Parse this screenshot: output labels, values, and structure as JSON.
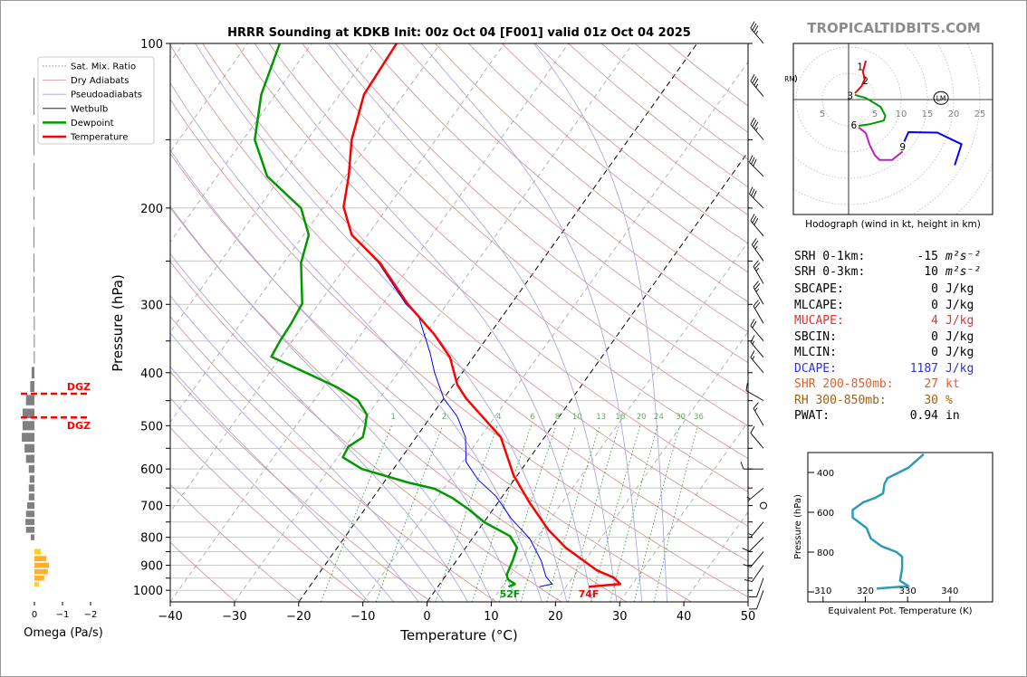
{
  "title": "HRRR Sounding at KDKB Init: 00z Oct 04 [F001] valid 01z Oct 04 2025",
  "watermark": "TROPICALTIDBITS.COM",
  "colors": {
    "temperature": "#ff0000",
    "dewpoint": "#009900",
    "wetbulb": "#0000ff",
    "dry_adiabat": "#d09090",
    "pseudoadiabat": "#a0a0e0",
    "mixing_ratio": "#2e8b2e",
    "isotherm": "#a0a0a0",
    "isotherm_key": "#000000",
    "omega_down": "#808080",
    "omega_up": "#ffb030",
    "omega_up_weak": "#ffd020",
    "dgz": "#ff0000",
    "hodo_0_3": "#ff0000",
    "hodo_3_6": "#009900",
    "hodo_6_9": "#bb22bb",
    "hodo_9_up": "#0000ff",
    "theta_e": "#2e9bb5",
    "mucape": "#e03030",
    "dcape": "#3030e0",
    "shr": "#e06030",
    "rh": "#a06010"
  },
  "legend": {
    "placement": "top-left",
    "items": [
      {
        "label": "Sat. Mix. Ratio",
        "style": "mixing_ratio"
      },
      {
        "label": "Dry Adiabats",
        "style": "dry_adiabat"
      },
      {
        "label": "Pseudoadiabats",
        "style": "pseudoadiabat"
      },
      {
        "label": "Wetbulb",
        "style": "wetbulb_legend"
      },
      {
        "label": "Dewpoint",
        "style": "dewpoint"
      },
      {
        "label": "Temperature",
        "style": "temperature"
      }
    ]
  },
  "indices": [
    {
      "label": "SRH 0-1km:",
      "value": "-15",
      "unit": "m²s⁻²",
      "color": "#000000",
      "italic": true
    },
    {
      "label": "SRH 0-3km:",
      "value": "10",
      "unit": "m²s⁻²",
      "color": "#000000",
      "italic": true
    },
    {
      "label": "SBCAPE:",
      "value": "0",
      "unit": "J/kg",
      "color": "#000000"
    },
    {
      "label": "MLCAPE:",
      "value": "0",
      "unit": "J/kg",
      "color": "#000000"
    },
    {
      "label": "MUCAPE:",
      "value": "4",
      "unit": "J/kg",
      "color": "#e03030"
    },
    {
      "label": "SBCIN:",
      "value": "0",
      "unit": "J/kg",
      "color": "#000000"
    },
    {
      "label": "MLCIN:",
      "value": "0",
      "unit": "J/kg",
      "color": "#000000"
    },
    {
      "label": "DCAPE:",
      "value": "1187",
      "unit": "J/kg",
      "color": "#3030e0"
    },
    {
      "label": "SHR 200-850mb:",
      "value": "27",
      "unit": "kt",
      "color": "#e06030"
    },
    {
      "label": "RH 300-850mb:",
      "value": "30",
      "unit": "%",
      "color": "#a06010"
    },
    {
      "label": "PWAT:",
      "value": "0.94",
      "unit": "in",
      "color": "#000000"
    }
  ],
  "chart_data": [
    {
      "type": "line",
      "name_of_panel": "skewt",
      "xlabel": "Temperature (°C)",
      "ylabel": "Pressure (hPa)",
      "xlim": [
        -40,
        50
      ],
      "ylim": [
        1050,
        100
      ],
      "yscale": "log",
      "skewed": true,
      "xticks": [
        -40,
        -30,
        -20,
        -10,
        0,
        10,
        20,
        30,
        40,
        50
      ],
      "xtick_labels": [
        "−40",
        "−30",
        "−20",
        "−10",
        "0",
        "10",
        "20",
        "30",
        "40",
        "50"
      ],
      "yticks": [
        100,
        200,
        300,
        400,
        500,
        600,
        700,
        800,
        900,
        1000
      ],
      "ytick_labels": [
        "100",
        "200",
        "300",
        "400",
        "500",
        "600",
        "700",
        "800",
        "900",
        "1000"
      ],
      "grid_pressures": [
        100,
        150,
        200,
        250,
        300,
        350,
        400,
        450,
        500,
        550,
        600,
        650,
        700,
        750,
        800,
        850,
        900,
        950,
        1000
      ],
      "key_isotherms": [
        -20,
        0
      ],
      "mixing_ratio_lines": [
        1,
        2,
        4,
        6,
        8,
        10,
        13,
        16,
        20,
        24,
        30,
        36
      ],
      "mixing_ratio_labels": [
        "1",
        "2",
        "4",
        "6",
        "8",
        "10",
        "13",
        "16",
        "20",
        "24",
        "30",
        "36"
      ],
      "temperature": [
        [
          100,
          -66.8
        ],
        [
          124,
          -66.2
        ],
        [
          150,
          -63.1
        ],
        [
          175,
          -59.5
        ],
        [
          199,
          -56.9
        ],
        [
          224,
          -52.5
        ],
        [
          252,
          -45.0
        ],
        [
          299,
          -36.2
        ],
        [
          341,
          -28.5
        ],
        [
          375,
          -23.6
        ],
        [
          421,
          -19.4
        ],
        [
          446,
          -16.5
        ],
        [
          525,
          -6.8
        ],
        [
          616,
          -0.6
        ],
        [
          691,
          4.9
        ],
        [
          774,
          10.8
        ],
        [
          836,
          15.6
        ],
        [
          920,
          23.0
        ],
        [
          948,
          26.4
        ],
        [
          974,
          28.1
        ],
        [
          985,
          23.5
        ]
      ],
      "dewpoint": [
        [
          100,
          -85
        ],
        [
          124,
          -82.2
        ],
        [
          150,
          -78.2
        ],
        [
          175,
          -72.2
        ],
        [
          200,
          -63.4
        ],
        [
          224,
          -59.2
        ],
        [
          252,
          -57.3
        ],
        [
          299,
          -52.6
        ],
        [
          325,
          -52.1
        ],
        [
          350,
          -51.9
        ],
        [
          374,
          -51.5
        ],
        [
          398,
          -44.9
        ],
        [
          426,
          -37.7
        ],
        [
          449,
          -33.2
        ],
        [
          477,
          -30.2
        ],
        [
          500,
          -29.2
        ],
        [
          525,
          -28.3
        ],
        [
          546,
          -29.5
        ],
        [
          571,
          -29.2
        ],
        [
          600,
          -24.9
        ],
        [
          635,
          -16.3
        ],
        [
          652,
          -11.4
        ],
        [
          678,
          -7.6
        ],
        [
          712,
          -3.7
        ],
        [
          751,
          0.1
        ],
        [
          796,
          5.6
        ],
        [
          836,
          8.0
        ],
        [
          879,
          8.7
        ],
        [
          937,
          9.4
        ],
        [
          955,
          10.1
        ],
        [
          974,
          11.7
        ],
        [
          985,
          11.0
        ]
      ],
      "wetbulb": [
        [
          100,
          -66.8
        ],
        [
          124,
          -66.2
        ],
        [
          150,
          -63.1
        ],
        [
          175,
          -59.5
        ],
        [
          199,
          -56.9
        ],
        [
          224,
          -52.5
        ],
        [
          252,
          -45.2
        ],
        [
          299,
          -36.5
        ],
        [
          316,
          -33.0
        ],
        [
          368,
          -27.2
        ],
        [
          400,
          -24.3
        ],
        [
          446,
          -20.0
        ],
        [
          481,
          -15.9
        ],
        [
          525,
          -12.3
        ],
        [
          582,
          -9.5
        ],
        [
          628,
          -5.6
        ],
        [
          673,
          -1.0
        ],
        [
          740,
          3.9
        ],
        [
          805,
          9.0
        ],
        [
          885,
          13.3
        ],
        [
          944,
          15.7
        ],
        [
          974,
          17.5
        ],
        [
          985,
          15.8
        ]
      ],
      "surface_dewpoint_label": "52F",
      "surface_temperature_label": "74F",
      "winds_kt": [
        [
          100,
          320,
          35
        ],
        [
          125,
          320,
          35
        ],
        [
          150,
          320,
          35
        ],
        [
          175,
          315,
          30
        ],
        [
          200,
          315,
          30
        ],
        [
          225,
          320,
          30
        ],
        [
          250,
          325,
          25
        ],
        [
          275,
          330,
          25
        ],
        [
          300,
          330,
          25
        ],
        [
          325,
          330,
          20
        ],
        [
          350,
          320,
          20
        ],
        [
          375,
          320,
          15
        ],
        [
          400,
          320,
          15
        ],
        [
          450,
          300,
          10
        ],
        [
          500,
          330,
          15
        ],
        [
          550,
          320,
          10
        ],
        [
          600,
          270,
          10
        ],
        [
          650,
          230,
          5
        ],
        [
          700,
          0,
          0
        ],
        [
          750,
          220,
          5
        ],
        [
          800,
          225,
          10
        ],
        [
          850,
          220,
          10
        ],
        [
          900,
          215,
          10
        ],
        [
          950,
          200,
          10
        ],
        [
          1000,
          200,
          10
        ]
      ]
    },
    {
      "type": "bar",
      "name_of_panel": "omega",
      "xlabel": "Omega (Pa/s)",
      "xticks": [
        0,
        -1,
        -2
      ],
      "xtick_labels": [
        "0",
        "−1",
        "−2"
      ],
      "orientation": "horizontal",
      "values": [
        [
          125,
          0.03
        ],
        [
          150,
          0.03
        ],
        [
          175,
          0.03
        ],
        [
          200,
          0.03
        ],
        [
          226,
          0.03
        ],
        [
          252,
          0.03
        ],
        [
          276,
          0.03
        ],
        [
          300,
          0.03
        ],
        [
          325,
          0.02
        ],
        [
          350,
          0.02
        ],
        [
          375,
          0.02
        ],
        [
          400,
          0.1
        ],
        [
          424,
          0.15
        ],
        [
          449,
          0.3
        ],
        [
          475,
          0.42
        ],
        [
          500,
          0.42
        ],
        [
          525,
          0.45
        ],
        [
          550,
          0.35
        ],
        [
          575,
          0.3
        ],
        [
          600,
          0.2
        ],
        [
          626,
          0.17
        ],
        [
          650,
          0.2
        ],
        [
          675,
          0.2
        ],
        [
          700,
          0.26
        ],
        [
          725,
          0.3
        ],
        [
          750,
          0.32
        ],
        [
          775,
          0.3
        ],
        [
          800,
          0.13
        ],
        [
          850,
          -0.23
        ],
        [
          875,
          -0.42
        ],
        [
          900,
          -0.52
        ],
        [
          925,
          -0.48
        ],
        [
          950,
          -0.35
        ],
        [
          975,
          -0.16
        ]
      ],
      "dgz_pressures": [
        437,
        483
      ],
      "dgz_label": "DGZ"
    },
    {
      "type": "line",
      "name_of_panel": "hodograph",
      "caption": "Hodograph (wind in kt, height in km)",
      "ring_step_kt": 5,
      "xtick_labels": [
        {
          "u": -5,
          "text": "5"
        },
        {
          "u": 5,
          "text": "5"
        },
        {
          "u": 10,
          "text": "10"
        },
        {
          "u": 15,
          "text": "15"
        },
        {
          "u": 20,
          "text": "20"
        },
        {
          "u": 25,
          "text": "25"
        }
      ],
      "segments": [
        {
          "layer": "0-3",
          "color_key": "hodo_0_3",
          "uv": [
            [
              3.3,
              7.4
            ],
            [
              2.7,
              5.3
            ],
            [
              3.1,
              4.0
            ],
            [
              2.5,
              2.6
            ],
            [
              1.2,
              1.2
            ]
          ]
        },
        {
          "layer": "3-6",
          "color_key": "hodo_3_6",
          "uv": [
            [
              1.2,
              0.9
            ],
            [
              3.3,
              0.3
            ],
            [
              6.1,
              -1.4
            ],
            [
              7.0,
              -3.1
            ],
            [
              6.7,
              -4.0
            ],
            [
              4.0,
              -4.7
            ],
            [
              1.9,
              -5.0
            ]
          ]
        },
        {
          "layer": "6-9",
          "color_key": "hodo_6_9",
          "uv": [
            [
              1.9,
              -5.3
            ],
            [
              3.3,
              -6.4
            ],
            [
              4.0,
              -8.6
            ],
            [
              5.0,
              -10.6
            ],
            [
              5.9,
              -11.5
            ],
            [
              8.3,
              -11.5
            ],
            [
              10.3,
              -9.9
            ]
          ]
        },
        {
          "layer": "9+",
          "color_key": "hodo_9_up",
          "uv": [
            [
              10.6,
              -8.0
            ],
            [
              11.4,
              -6.2
            ],
            [
              16.9,
              -6.3
            ],
            [
              21.5,
              -8.5
            ],
            [
              20.2,
              -12.5
            ]
          ]
        }
      ],
      "height_labels": [
        {
          "text": "1",
          "u": 2.2,
          "v": 6.3
        },
        {
          "text": "2",
          "u": 3.2,
          "v": 3.6
        },
        {
          "text": "3",
          "u": 0.3,
          "v": 0.8
        },
        {
          "text": "6",
          "u": 1.0,
          "v": -4.8
        },
        {
          "text": "9",
          "u": 10.3,
          "v": -9.0
        }
      ],
      "storm_motion": [
        {
          "text": "LM",
          "u": 17.6,
          "v": 0.3
        },
        {
          "text": "RM",
          "u": -12.4,
          "v": 4.0
        }
      ]
    },
    {
      "type": "line",
      "name_of_panel": "theta_e",
      "xlabel": "Equivalent Pot. Temperature (K)",
      "ylabel": "Pressure (hPa)",
      "xlim": [
        306.4,
        350.1
      ],
      "ylim": [
        1050,
        300
      ],
      "xticks": [
        310,
        320,
        330,
        340
      ],
      "xtick_labels": [
        "310",
        "320",
        "330",
        "340"
      ],
      "yticks": [
        400,
        600,
        800,
        1000
      ],
      "ytick_labels": [
        "400",
        "600",
        "800",
        ""
      ],
      "values": [
        [
          308,
          333.8
        ],
        [
          376,
          330.2
        ],
        [
          406,
          327.4
        ],
        [
          429,
          325.2
        ],
        [
          459,
          324.5
        ],
        [
          505,
          324.2
        ],
        [
          527,
          322.4
        ],
        [
          550,
          319.5
        ],
        [
          588,
          317.0
        ],
        [
          626,
          317.0
        ],
        [
          679,
          320.3
        ],
        [
          732,
          321.3
        ],
        [
          770,
          323.8
        ],
        [
          800,
          327.4
        ],
        [
          823,
          328.7
        ],
        [
          883,
          328.7
        ],
        [
          944,
          328.2
        ],
        [
          971,
          330.2
        ],
        [
          983,
          322.7
        ]
      ]
    }
  ]
}
